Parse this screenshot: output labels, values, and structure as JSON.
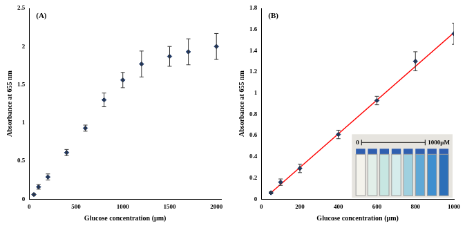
{
  "chart_data": [
    {
      "type": "scatter",
      "panel_label": "(A)",
      "x_label": "Glucose concentration (µm)",
      "y_label": "Absorbance at 655 nm",
      "xlim": [
        0,
        2050
      ],
      "xticks": [
        0,
        500,
        1000,
        1500,
        2000
      ],
      "ylim": [
        0,
        2.5
      ],
      "yticks": [
        0,
        0.5,
        1,
        1.5,
        2,
        2.5
      ],
      "grid": false,
      "series": [
        {
          "type": "scatter",
          "color": "#1f3864",
          "marker": "diamond",
          "x": [
            50,
            100,
            200,
            400,
            600,
            800,
            1000,
            1200,
            1500,
            1700,
            2000
          ],
          "values": [
            0.06,
            0.16,
            0.29,
            0.61,
            0.93,
            1.3,
            1.56,
            1.77,
            1.87,
            1.93,
            2.0
          ],
          "errors": [
            0.01,
            0.03,
            0.04,
            0.04,
            0.04,
            0.09,
            0.1,
            0.17,
            0.13,
            0.17,
            0.17
          ]
        }
      ]
    },
    {
      "type": "scatter",
      "panel_label": "(B)",
      "x_label": "Glucose concentration (µm)",
      "y_label": "Absorbance at 655 nm",
      "xlim": [
        0,
        1000
      ],
      "xticks": [
        0,
        200,
        400,
        600,
        800,
        1000
      ],
      "ylim": [
        0,
        1.8
      ],
      "yticks": [
        0,
        0.2,
        0.4,
        0.6,
        0.8,
        1,
        1.2,
        1.4,
        1.6,
        1.8
      ],
      "grid": false,
      "annotations": [
        "0",
        "1000µM"
      ],
      "series": [
        {
          "type": "scatter",
          "color": "#1f3864",
          "marker": "diamond",
          "x": [
            50,
            100,
            200,
            400,
            600,
            800,
            1000
          ],
          "values": [
            0.06,
            0.16,
            0.29,
            0.61,
            0.93,
            1.3,
            1.56
          ],
          "errors": [
            0.01,
            0.03,
            0.04,
            0.04,
            0.04,
            0.09,
            0.1
          ]
        },
        {
          "type": "line",
          "color": "#ff0000",
          "line_style": "solid",
          "x": [
            50,
            1000
          ],
          "values": [
            0.06,
            1.57
          ]
        }
      ]
    }
  ]
}
